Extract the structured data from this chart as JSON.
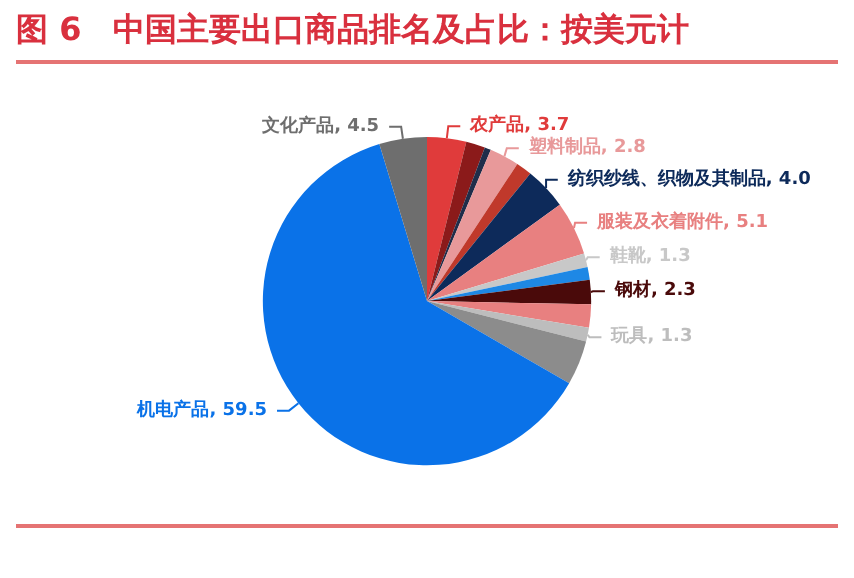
{
  "chart_data": {
    "type": "pie",
    "title": "图 6　中国主要出口商品排名及占比：按美元计",
    "categories": [
      "农产品",
      null,
      null,
      "塑料制品",
      null,
      "纺织纱线、织物及其制品",
      "服装及衣着附件",
      "鞋靴",
      null,
      "钢材",
      null,
      "玩具",
      null,
      "机电产品",
      "文化产品"
    ],
    "values": [
      3.7,
      1.8,
      0.6,
      2.8,
      1.5,
      4.0,
      5.1,
      1.3,
      1.2,
      2.3,
      2.2,
      1.3,
      4.2,
      59.5,
      4.5
    ],
    "value_labels": [
      "3.7",
      null,
      null,
      "2.8",
      null,
      "4.0",
      "5.1",
      "1.3",
      null,
      "2.3",
      null,
      "1.3",
      null,
      "59.5",
      "4.5"
    ],
    "colors": [
      "#e03b3b",
      "#8b1a1a",
      "#1f2d4a",
      "#e8999a",
      "#c0392b",
      "#0d2a5a",
      "#e88080",
      "#c8c8c8",
      "#1e88e5",
      "#4a0a0a",
      "#e88080",
      "#bdbdbd",
      "#8c8c8c",
      "#0a72e8",
      "#6e6e6e"
    ]
  }
}
